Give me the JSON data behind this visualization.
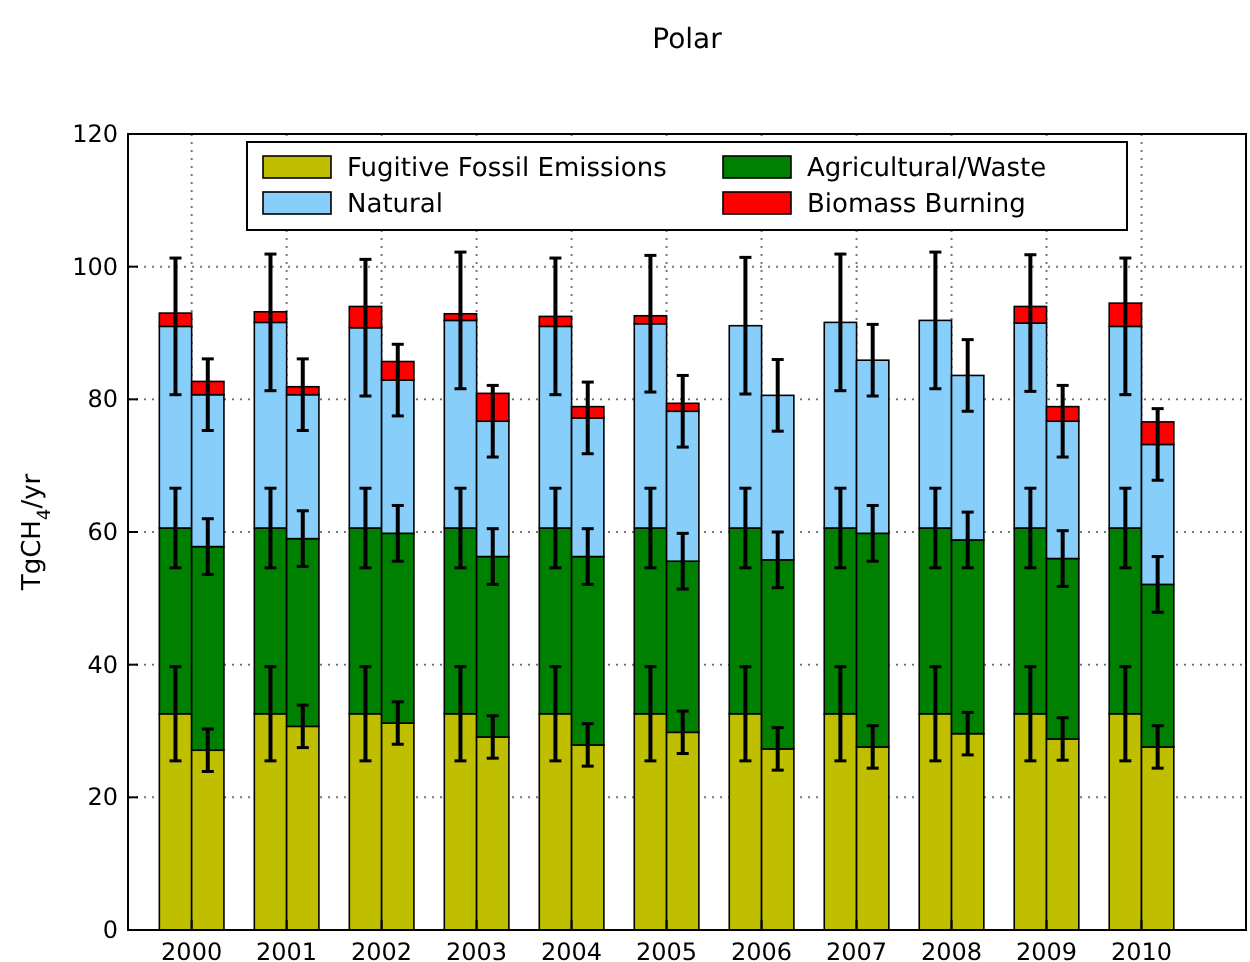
{
  "chart_data": {
    "type": "bar",
    "title": "Polar",
    "ylabel": "TgCH$_{4}$/yr",
    "stacked": true,
    "x": [
      1999.83,
      2000.17,
      2000.83,
      2001.17,
      2001.83,
      2002.17,
      2002.83,
      2003.17,
      2003.83,
      2004.17,
      2004.83,
      2005.17,
      2005.83,
      2006.17,
      2006.83,
      2007.17,
      2007.83,
      2008.17,
      2008.83,
      2009.17,
      2009.83,
      2010.17
    ],
    "xlim": [
      1999.33,
      2011.1
    ],
    "xticks": [
      2000,
      2001,
      2002,
      2003,
      2004,
      2005,
      2006,
      2007,
      2008,
      2009,
      2010
    ],
    "ylim": [
      0,
      120
    ],
    "yticks": [
      0,
      20,
      40,
      60,
      80,
      100,
      120
    ],
    "grid": true,
    "legend": "top",
    "series": [
      {
        "name": "Fugitive Fossil Emissions",
        "color": "#bfbf00",
        "values": [
          32.6,
          27.1,
          32.6,
          30.7,
          32.6,
          31.2,
          32.6,
          29.1,
          32.6,
          27.9,
          32.6,
          29.8,
          32.6,
          27.3,
          32.6,
          27.6,
          32.6,
          29.6,
          32.6,
          28.8,
          32.6,
          27.6
        ],
        "errors": [
          7.1,
          3.2,
          7.1,
          3.2,
          7.1,
          3.2,
          7.1,
          3.2,
          7.1,
          3.2,
          7.1,
          3.2,
          7.1,
          3.2,
          7.1,
          3.2,
          7.1,
          3.2,
          7.1,
          3.2,
          7.1,
          3.2
        ]
      },
      {
        "name": "Agricultural/Waste",
        "color": "#008000",
        "values": [
          28.0,
          30.7,
          28.0,
          28.3,
          28.0,
          28.6,
          28.0,
          27.2,
          28.0,
          28.4,
          28.0,
          25.8,
          28.0,
          28.5,
          28.0,
          32.2,
          28.0,
          29.2,
          28.0,
          27.2,
          28.0,
          24.5
        ],
        "errors": [
          6.0,
          4.2,
          6.0,
          4.2,
          6.0,
          4.2,
          6.0,
          4.2,
          6.0,
          4.2,
          6.0,
          4.2,
          6.0,
          4.2,
          6.0,
          4.2,
          6.0,
          4.2,
          6.0,
          4.2,
          6.0,
          4.2
        ]
      },
      {
        "name": "Natural",
        "color": "#87cefa",
        "values": [
          30.4,
          22.9,
          31.0,
          21.7,
          30.2,
          23.1,
          31.3,
          20.4,
          30.4,
          20.9,
          30.8,
          22.6,
          30.5,
          24.8,
          31.0,
          26.1,
          31.3,
          24.8,
          30.9,
          20.7,
          30.4,
          21.1
        ],
        "errors": [
          10.3,
          5.4,
          10.3,
          5.4,
          10.3,
          5.4,
          10.3,
          5.4,
          10.3,
          5.4,
          10.3,
          5.4,
          10.3,
          5.4,
          10.3,
          5.4,
          10.3,
          5.4,
          10.3,
          5.4,
          10.3,
          5.4
        ]
      },
      {
        "name": "Biomass Burning",
        "color": "#ff0000",
        "values": [
          2.0,
          2.0,
          1.6,
          1.2,
          3.2,
          2.8,
          1.0,
          4.2,
          1.5,
          1.7,
          1.2,
          1.2,
          null,
          null,
          null,
          null,
          null,
          null,
          2.5,
          2.2,
          3.5,
          3.4
        ]
      }
    ]
  }
}
